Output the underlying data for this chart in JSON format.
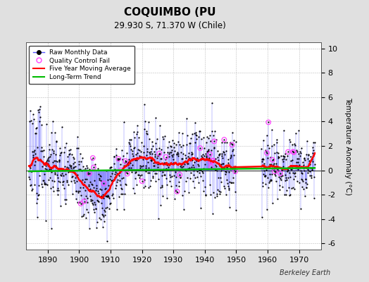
{
  "title": "COQUIMBO (PU",
  "subtitle": "29.930 S, 71.370 W (Chile)",
  "ylabel": "Temperature Anomaly (°C)",
  "xlabel_years": [
    1890,
    1900,
    1910,
    1920,
    1930,
    1940,
    1950,
    1960,
    1970
  ],
  "xlim": [
    1883,
    1977
  ],
  "ylim": [
    -6.5,
    10.5
  ],
  "yticks": [
    -6,
    -4,
    -2,
    0,
    2,
    4,
    6,
    8,
    10
  ],
  "background_color": "#e0e0e0",
  "plot_bg_color": "#ffffff",
  "raw_line_color": "#5555ff",
  "raw_marker_color": "#000000",
  "moving_avg_color": "#ff0000",
  "trend_color": "#00bb00",
  "qc_fail_color": "#ff44ff",
  "watermark": "Berkeley Earth",
  "seed": 17
}
